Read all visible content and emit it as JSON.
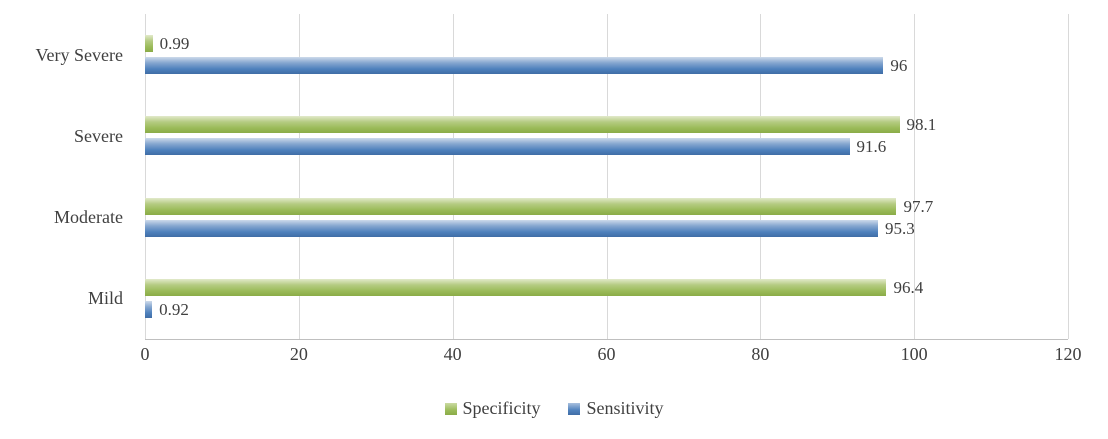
{
  "chart_data": {
    "type": "bar",
    "orientation": "horizontal",
    "title": "",
    "xlabel": "",
    "ylabel": "",
    "categories": [
      "Very Severe",
      "Severe",
      "Moderate",
      "Mild"
    ],
    "series": [
      {
        "name": "Specificity",
        "color": "#9bbb59",
        "values": [
          0.99,
          98.1,
          97.7,
          96.4
        ],
        "labels": [
          "0.99",
          "98.1",
          "97.7",
          "96.4"
        ]
      },
      {
        "name": "Sensitivity",
        "color": "#4f81bd",
        "values": [
          96,
          91.6,
          95.3,
          0.92
        ],
        "labels": [
          "96",
          "91.6",
          "95.3",
          "0.92"
        ]
      }
    ],
    "xlim": [
      0,
      120
    ],
    "x_ticks": [
      0,
      20,
      40,
      60,
      80,
      100,
      120
    ],
    "grid": true,
    "legend_position": "bottom"
  },
  "legend": {
    "specificity_label": "Specificity",
    "sensitivity_label": "Sensitivity"
  }
}
